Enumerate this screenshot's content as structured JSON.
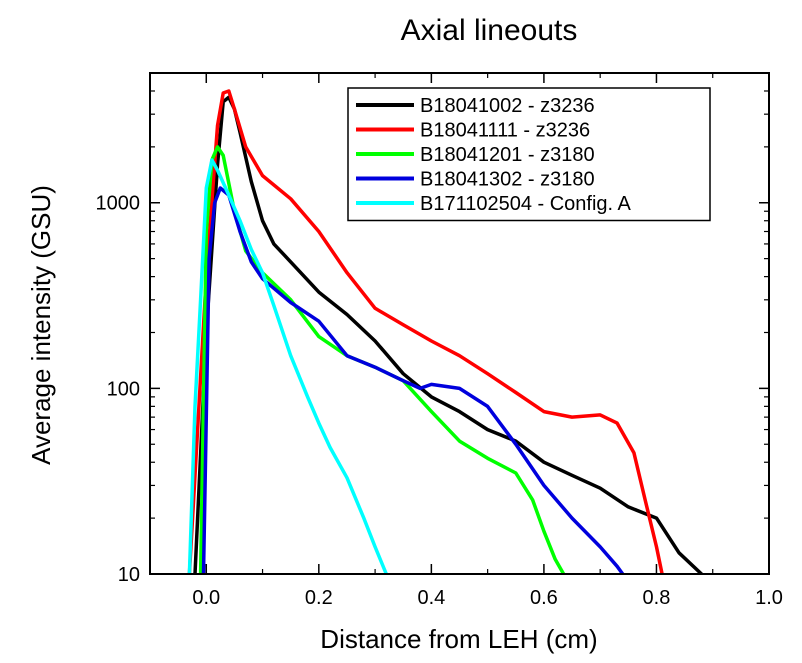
{
  "chart_data": {
    "type": "line",
    "title": "Axial lineouts",
    "xlabel": "Distance from LEH (cm)",
    "ylabel": "Average intensity (GSU)",
    "xlim": [
      -0.1,
      1.0
    ],
    "ylim": [
      10,
      5000
    ],
    "yscale": "log",
    "x_ticks": [
      0.0,
      0.2,
      0.4,
      0.6,
      0.8,
      1.0
    ],
    "x_tick_labels": [
      "0.0",
      "0.2",
      "0.4",
      "0.6",
      "0.8",
      "1.0"
    ],
    "y_ticks": [
      10,
      100,
      1000
    ],
    "y_tick_labels": [
      "10",
      "100",
      "1000"
    ],
    "legend_position": "top-right",
    "series": [
      {
        "name": "B18041002 - z3236",
        "color": "#000000",
        "x": [
          -0.02,
          0.0,
          0.02,
          0.03,
          0.04,
          0.05,
          0.06,
          0.08,
          0.1,
          0.12,
          0.15,
          0.2,
          0.25,
          0.3,
          0.35,
          0.4,
          0.45,
          0.5,
          0.55,
          0.6,
          0.65,
          0.7,
          0.75,
          0.8,
          0.84,
          0.88
        ],
        "y": [
          10,
          200,
          1600,
          3500,
          3700,
          3200,
          2400,
          1300,
          800,
          600,
          480,
          330,
          250,
          180,
          120,
          90,
          75,
          60,
          52,
          40,
          34,
          29,
          23,
          20,
          13,
          10
        ]
      },
      {
        "name": "B18041111 - z3236",
        "color": "#ff0000",
        "x": [
          -0.03,
          0.0,
          0.02,
          0.03,
          0.04,
          0.05,
          0.07,
          0.1,
          0.15,
          0.2,
          0.25,
          0.3,
          0.35,
          0.4,
          0.45,
          0.5,
          0.55,
          0.6,
          0.65,
          0.7,
          0.73,
          0.76,
          0.78,
          0.8,
          0.81
        ],
        "y": [
          10,
          400,
          2600,
          3900,
          4000,
          3200,
          2000,
          1400,
          1050,
          700,
          420,
          270,
          220,
          180,
          150,
          120,
          95,
          75,
          70,
          72,
          65,
          45,
          25,
          14,
          10
        ]
      },
      {
        "name": "B18041201 - z3180",
        "color": "#00ff00",
        "x": [
          -0.01,
          0.0,
          0.01,
          0.02,
          0.03,
          0.05,
          0.07,
          0.1,
          0.15,
          0.2,
          0.25,
          0.3,
          0.35,
          0.4,
          0.45,
          0.5,
          0.55,
          0.58,
          0.6,
          0.62,
          0.635
        ],
        "y": [
          10,
          700,
          1700,
          2000,
          1800,
          900,
          550,
          420,
          300,
          190,
          150,
          130,
          110,
          75,
          52,
          42,
          35,
          25,
          17,
          12,
          10
        ]
      },
      {
        "name": "B18041302 - z3180",
        "color": "#0000dd",
        "x": [
          -0.005,
          0.005,
          0.015,
          0.025,
          0.04,
          0.06,
          0.08,
          0.1,
          0.15,
          0.2,
          0.25,
          0.3,
          0.35,
          0.38,
          0.4,
          0.45,
          0.5,
          0.55,
          0.6,
          0.65,
          0.7,
          0.73,
          0.74
        ],
        "y": [
          10,
          500,
          1000,
          1200,
          1100,
          700,
          480,
          390,
          290,
          230,
          150,
          130,
          110,
          100,
          105,
          100,
          80,
          50,
          30,
          20,
          14,
          11,
          10
        ]
      },
      {
        "name": "B171102504 - Config. A",
        "color": "#00ffff",
        "x": [
          -0.03,
          -0.02,
          -0.01,
          0.0,
          0.01,
          0.02,
          0.04,
          0.06,
          0.08,
          0.1,
          0.12,
          0.15,
          0.18,
          0.2,
          0.22,
          0.25,
          0.28,
          0.3,
          0.32
        ],
        "y": [
          10,
          80,
          300,
          1200,
          1700,
          1500,
          1100,
          800,
          560,
          420,
          280,
          150,
          90,
          65,
          48,
          33,
          20,
          14,
          10
        ]
      }
    ]
  }
}
